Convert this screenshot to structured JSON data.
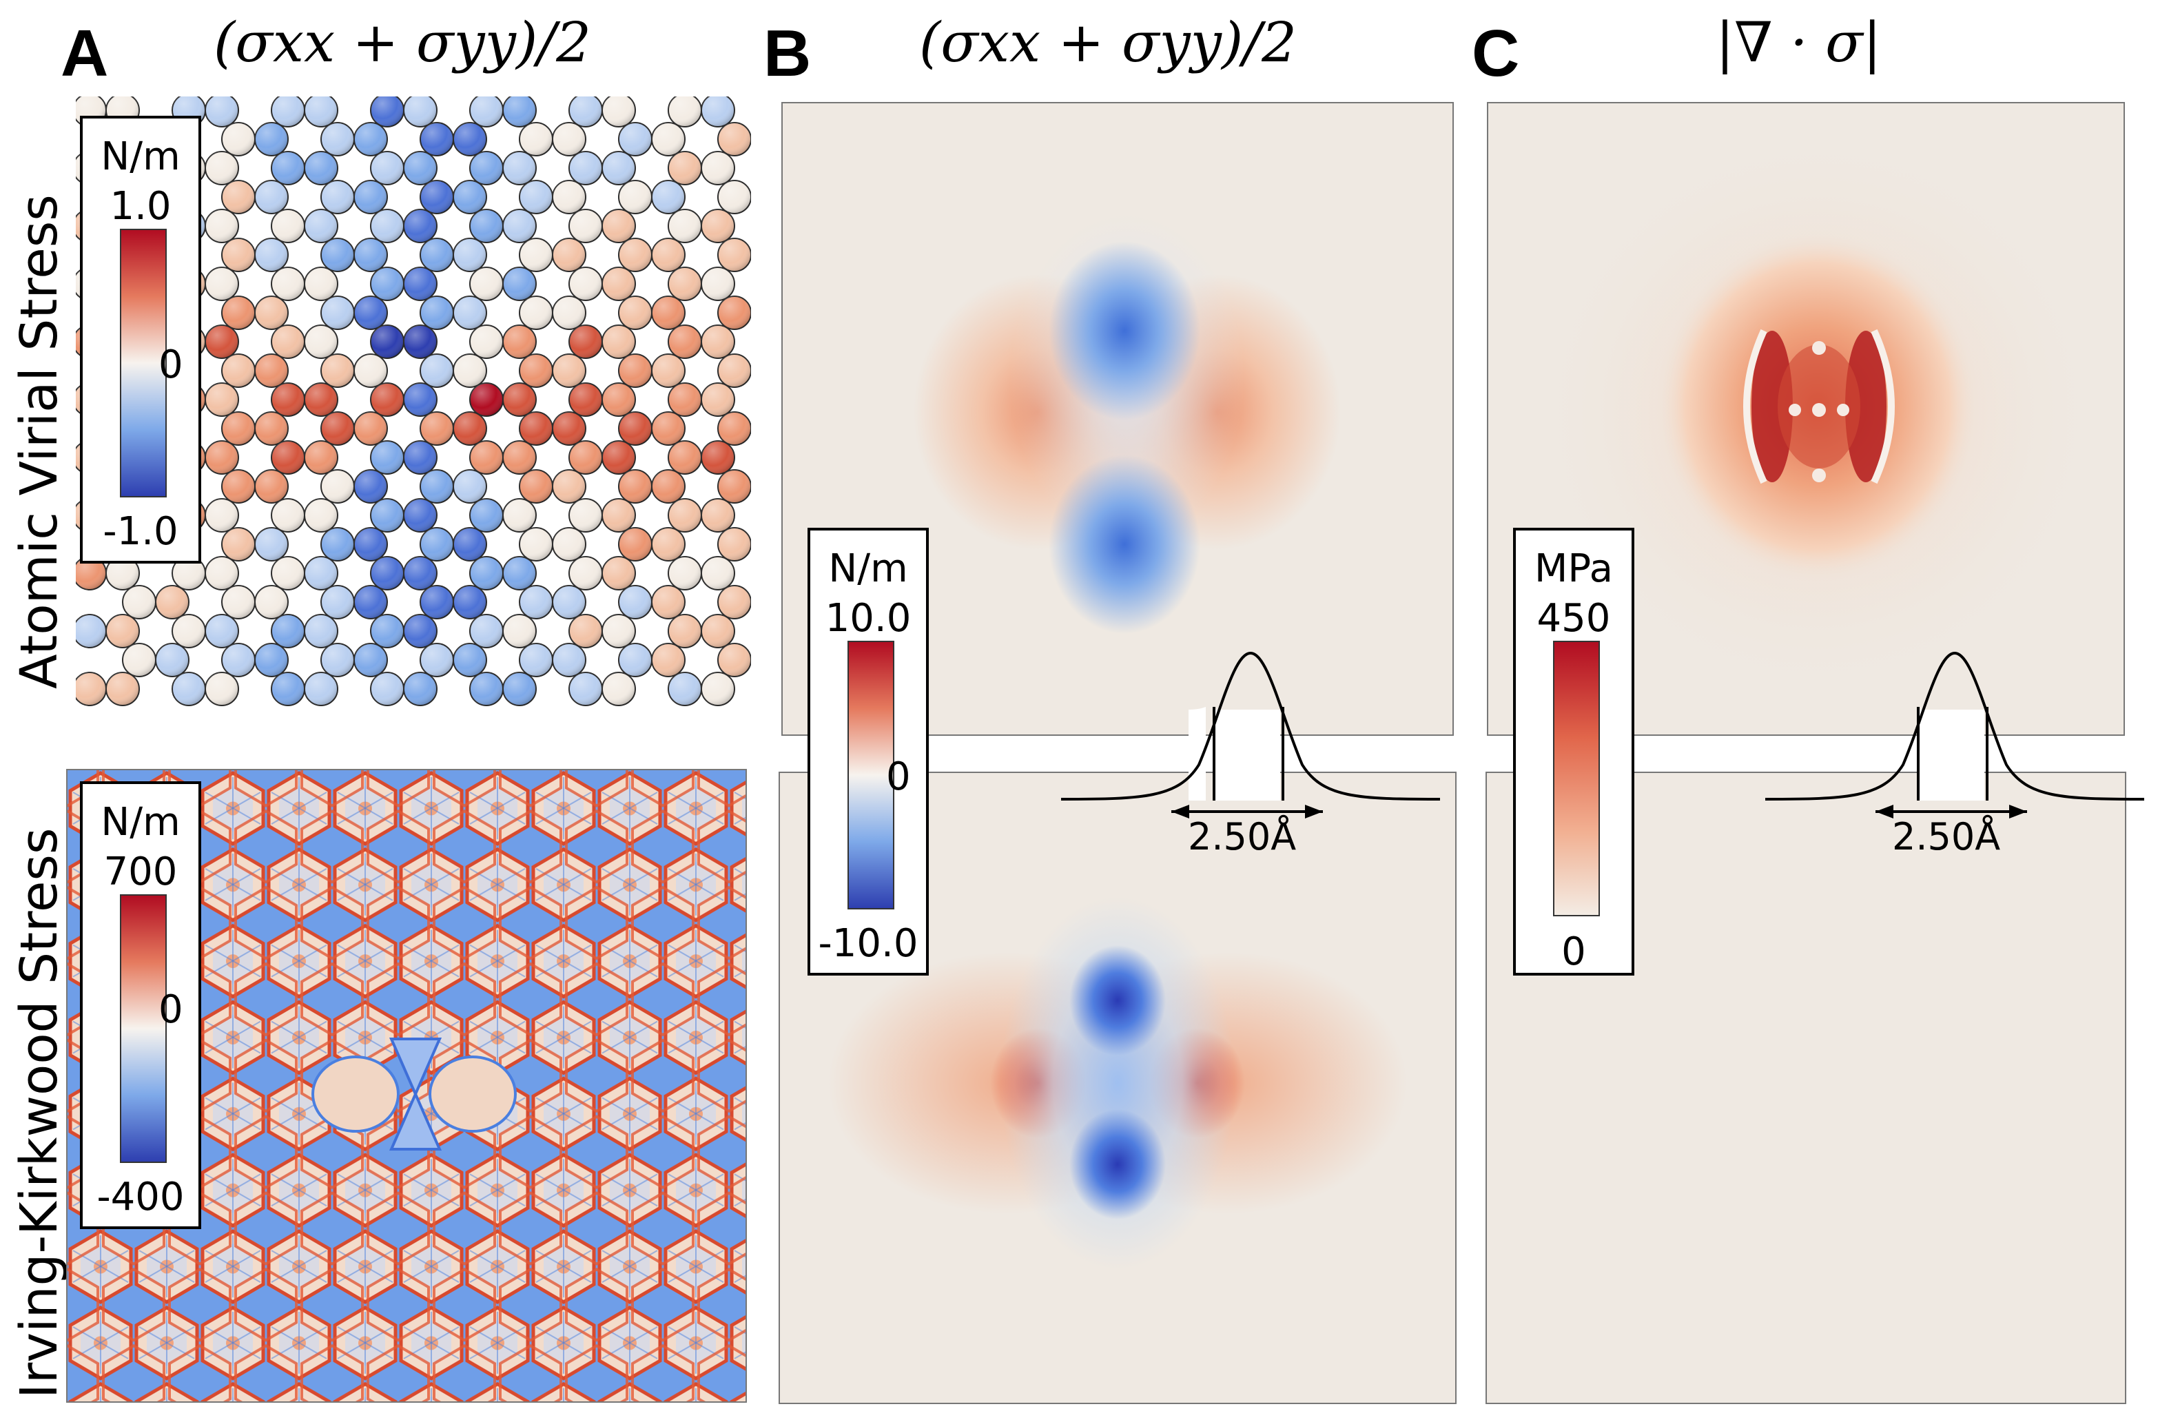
{
  "panels": {
    "A": {
      "letter": "A",
      "title": "(σxx + σyy)/2",
      "row_top_label": "Atomic Virial Stress",
      "row_bottom_label": "Irving-Kirkwood Stress",
      "top_colorbar": {
        "unit": "N/m",
        "max": "1.0",
        "mid": "0",
        "min": "-1.0"
      },
      "bottom_colorbar": {
        "unit": "N/m",
        "max": "700",
        "mid": "0",
        "min": "-400"
      }
    },
    "B": {
      "letter": "B",
      "title": "(σxx + σyy)/2",
      "colorbar": {
        "unit": "N/m",
        "max": "10.0",
        "mid": "0",
        "min": "-10.0"
      },
      "scale_label": "2.50Å"
    },
    "C": {
      "letter": "C",
      "title": "|∇ · σ|",
      "colorbar": {
        "unit": "MPa",
        "max": "450",
        "min": "0"
      },
      "scale_label": "2.50Å"
    }
  },
  "colors": {
    "neg_strong": "#2e3fb0",
    "neg": "#6fa0e6",
    "neutral": "#f3ece4",
    "pos": "#ec9571",
    "pos_strong": "#b10d22",
    "background_field": "#efe9e2"
  }
}
